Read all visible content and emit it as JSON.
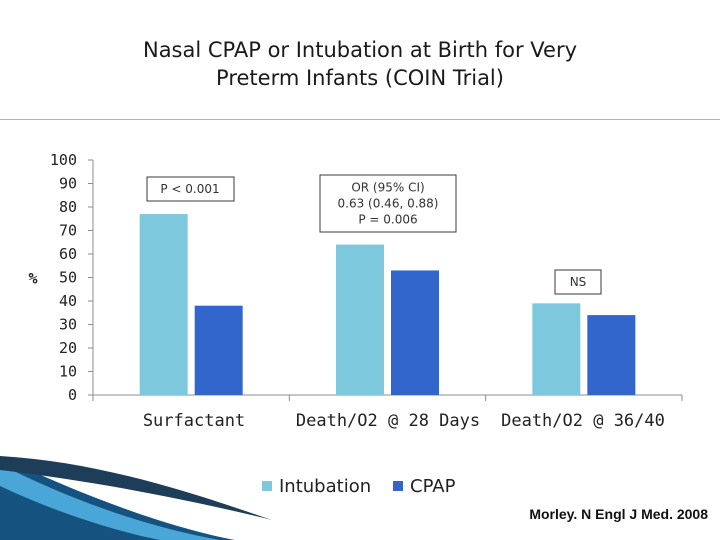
{
  "title_line1": "Nasal CPAP or Intubation at Birth for Very",
  "title_line2": "Preterm Infants (COIN Trial)",
  "citation": "Morley. N Engl J Med. 2008",
  "colors": {
    "intubation": "#7ec8de",
    "cpap": "#3366cc",
    "axis": "#8c8c8c",
    "rule": "#d8a878",
    "swoosh_dark": "#15527f",
    "swoosh_light": "#4aa6d6"
  },
  "annotations": [
    {
      "lines": [
        "P < 0.001"
      ]
    },
    {
      "lines": [
        "OR (95% CI)",
        "0.63 (0.46, 0.88)",
        "P = 0.006"
      ]
    },
    {
      "lines": [
        "NS"
      ]
    }
  ],
  "chart_data": {
    "type": "bar",
    "title": "",
    "xlabel": "",
    "ylabel": "%",
    "ylim": [
      0,
      100
    ],
    "yticks": [
      0,
      10,
      20,
      30,
      40,
      50,
      60,
      70,
      80,
      90,
      100
    ],
    "grid": false,
    "legend_position": "bottom",
    "categories": [
      "Surfactant",
      "Death/O2 @ 28 Days",
      "Death/O2 @ 36/40"
    ],
    "series": [
      {
        "name": "Intubation",
        "values": [
          77,
          64,
          39
        ]
      },
      {
        "name": "CPAP",
        "values": [
          38,
          53,
          34
        ]
      }
    ]
  }
}
